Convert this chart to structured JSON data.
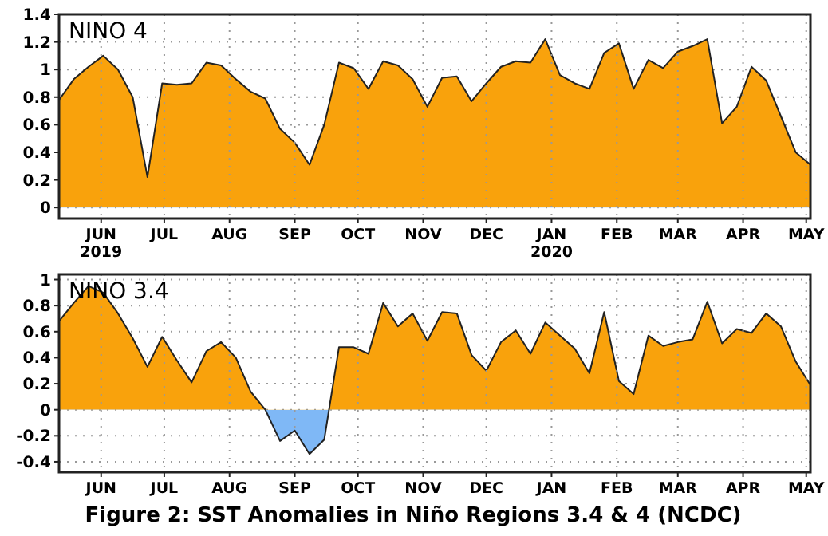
{
  "chart_data": [
    {
      "type": "area",
      "title": "NINO  4",
      "x": [
        "2019-05-12",
        "2019-05-19",
        "2019-05-26",
        "2019-06-02",
        "2019-06-09",
        "2019-06-16",
        "2019-06-23",
        "2019-06-30",
        "2019-07-07",
        "2019-07-14",
        "2019-07-21",
        "2019-07-28",
        "2019-08-04",
        "2019-08-11",
        "2019-08-18",
        "2019-08-25",
        "2019-09-01",
        "2019-09-08",
        "2019-09-15",
        "2019-09-22",
        "2019-09-29",
        "2019-10-06",
        "2019-10-13",
        "2019-10-20",
        "2019-10-27",
        "2019-11-03",
        "2019-11-10",
        "2019-11-17",
        "2019-11-24",
        "2019-12-01",
        "2019-12-08",
        "2019-12-15",
        "2019-12-22",
        "2019-12-29",
        "2020-01-05",
        "2020-01-12",
        "2020-01-19",
        "2020-01-26",
        "2020-02-02",
        "2020-02-09",
        "2020-02-16",
        "2020-02-23",
        "2020-03-01",
        "2020-03-08",
        "2020-03-15",
        "2020-03-22",
        "2020-03-29",
        "2020-04-05",
        "2020-04-12",
        "2020-04-19",
        "2020-04-26",
        "2020-05-03"
      ],
      "series": [
        {
          "color": "#f9a20c",
          "values": [
            0.78,
            0.93,
            1.02,
            1.1,
            1.0,
            0.8,
            0.22,
            0.9,
            0.89,
            0.9,
            1.05,
            1.03,
            0.93,
            0.84,
            0.79,
            0.57,
            0.47,
            0.31,
            0.6,
            1.05,
            1.01,
            0.86,
            1.06,
            1.03,
            0.93,
            0.73,
            0.94,
            0.95,
            0.77,
            0.9,
            1.02,
            1.06,
            1.05,
            1.22,
            0.96,
            0.9,
            0.86,
            1.12,
            1.19,
            0.86,
            1.07,
            1.01,
            1.13,
            1.17,
            1.22,
            0.61,
            0.73,
            1.02,
            0.92,
            0.66,
            0.4,
            0.31
          ]
        }
      ],
      "xlim": [
        "2019-05-12",
        "2020-05-03"
      ],
      "xticks": [
        {
          "value": "2019-06-01",
          "label": "JUN\n2019"
        },
        {
          "value": "2019-07-01",
          "label": "JUL"
        },
        {
          "value": "2019-08-01",
          "label": "AUG"
        },
        {
          "value": "2019-09-01",
          "label": "SEP"
        },
        {
          "value": "2019-10-01",
          "label": "OCT"
        },
        {
          "value": "2019-11-01",
          "label": "NOV"
        },
        {
          "value": "2019-12-01",
          "label": "DEC"
        },
        {
          "value": "2020-01-01",
          "label": "JAN\n2020"
        },
        {
          "value": "2020-02-01",
          "label": "FEB"
        },
        {
          "value": "2020-03-01",
          "label": "MAR"
        },
        {
          "value": "2020-04-01",
          "label": "APR"
        },
        {
          "value": "2020-05-01",
          "label": "MAY"
        }
      ],
      "ylim": [
        -0.08,
        1.4
      ],
      "yticks": [
        0,
        0.2,
        0.4,
        0.6,
        0.8,
        1,
        1.2,
        1.4
      ],
      "grid": true
    },
    {
      "type": "area",
      "title": "NINO  3.4",
      "x": [
        "2019-05-12",
        "2019-05-19",
        "2019-05-26",
        "2019-06-02",
        "2019-06-09",
        "2019-06-16",
        "2019-06-23",
        "2019-06-30",
        "2019-07-07",
        "2019-07-14",
        "2019-07-21",
        "2019-07-28",
        "2019-08-04",
        "2019-08-11",
        "2019-08-18",
        "2019-08-25",
        "2019-09-01",
        "2019-09-08",
        "2019-09-15",
        "2019-09-22",
        "2019-09-29",
        "2019-10-06",
        "2019-10-13",
        "2019-10-20",
        "2019-10-27",
        "2019-11-03",
        "2019-11-10",
        "2019-11-17",
        "2019-11-24",
        "2019-12-01",
        "2019-12-08",
        "2019-12-15",
        "2019-12-22",
        "2019-12-29",
        "2020-01-05",
        "2020-01-12",
        "2020-01-19",
        "2020-01-26",
        "2020-02-02",
        "2020-02-09",
        "2020-02-16",
        "2020-02-23",
        "2020-03-01",
        "2020-03-08",
        "2020-03-15",
        "2020-03-22",
        "2020-03-29",
        "2020-04-05",
        "2020-04-12",
        "2020-04-19",
        "2020-04-26",
        "2020-05-03"
      ],
      "series": [
        {
          "color": "#f9a20c",
          "values": [
            0.68,
            0.82,
            0.95,
            0.9,
            0.74,
            0.55,
            0.33,
            0.56,
            0.38,
            0.21,
            0.45,
            0.52,
            0.4,
            0.14,
            0.0,
            -0.24,
            -0.16,
            -0.34,
            -0.23,
            0.48,
            0.48,
            0.43,
            0.82,
            0.64,
            0.74,
            0.53,
            0.75,
            0.74,
            0.42,
            0.3,
            0.52,
            0.61,
            0.43,
            0.67,
            0.57,
            0.47,
            0.28,
            0.75,
            0.22,
            0.12,
            0.57,
            0.49,
            0.52,
            0.54,
            0.83,
            0.51,
            0.62,
            0.59,
            0.74,
            0.64,
            0.37,
            0.19
          ]
        }
      ],
      "xlim": [
        "2019-05-12",
        "2020-05-03"
      ],
      "xticks": [
        {
          "value": "2019-06-01",
          "label": "JUN"
        },
        {
          "value": "2019-07-01",
          "label": "JUL"
        },
        {
          "value": "2019-08-01",
          "label": "AUG"
        },
        {
          "value": "2019-09-01",
          "label": "SEP"
        },
        {
          "value": "2019-10-01",
          "label": "OCT"
        },
        {
          "value": "2019-11-01",
          "label": "NOV"
        },
        {
          "value": "2019-12-01",
          "label": "DEC"
        },
        {
          "value": "2020-01-01",
          "label": "JAN"
        },
        {
          "value": "2020-02-01",
          "label": "FEB"
        },
        {
          "value": "2020-03-01",
          "label": "MAR"
        },
        {
          "value": "2020-04-01",
          "label": "APR"
        },
        {
          "value": "2020-05-01",
          "label": "MAY"
        }
      ],
      "ylim": [
        -0.48,
        1.04
      ],
      "yticks": [
        -0.4,
        -0.2,
        0,
        0.2,
        0.4,
        0.6,
        0.8,
        1
      ],
      "grid": true,
      "annotations": [
        "Figure 2: SST Anomalies in Niño Regions 3.4 & 4 (NCDC)"
      ]
    }
  ]
}
